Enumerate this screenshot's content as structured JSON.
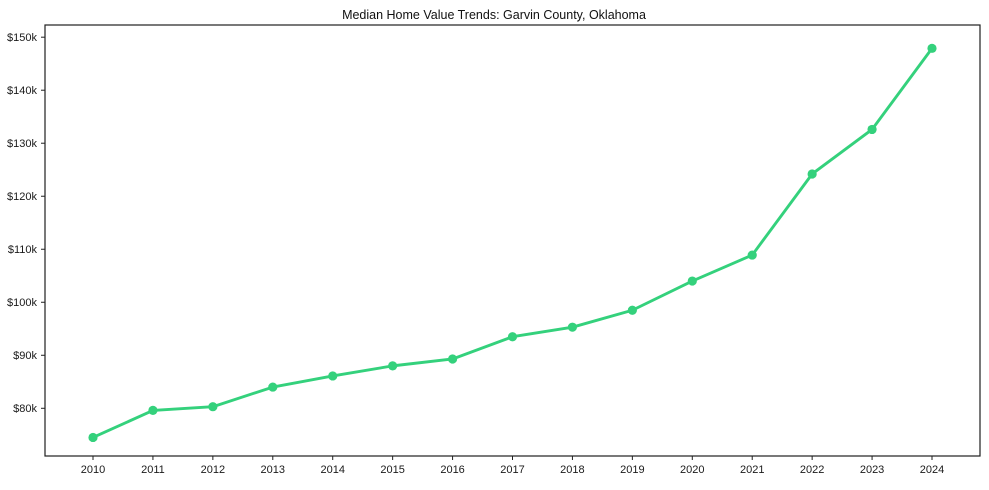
{
  "chart_data": {
    "type": "line",
    "title": "Median Home Value Trends: Garvin County, Oklahoma",
    "x": [
      "2010",
      "2011",
      "2012",
      "2013",
      "2014",
      "2015",
      "2016",
      "2017",
      "2018",
      "2019",
      "2020",
      "2021",
      "2022",
      "2023",
      "2024"
    ],
    "series": [
      {
        "name": "Median Home Value",
        "values": [
          74500,
          79600,
          80300,
          84000,
          86100,
          88000,
          89300,
          93500,
          95300,
          98500,
          104000,
          108900,
          124200,
          132600,
          147900
        ]
      }
    ],
    "yticks": [
      80000,
      90000,
      100000,
      110000,
      120000,
      130000,
      140000,
      150000
    ],
    "ytick_labels": [
      "$80k",
      "$90k",
      "$100k",
      "$110k",
      "$120k",
      "$130k",
      "$140k",
      "$150k"
    ],
    "ylim": [
      71000,
      152300
    ],
    "xlabel": "",
    "ylabel": "",
    "grid": false,
    "legend": "none",
    "marker": "circle",
    "line_color": "#34d17c",
    "axis_color": "#1f1f1f",
    "text_color": "#1a1a1a",
    "background": "#ffffff"
  }
}
